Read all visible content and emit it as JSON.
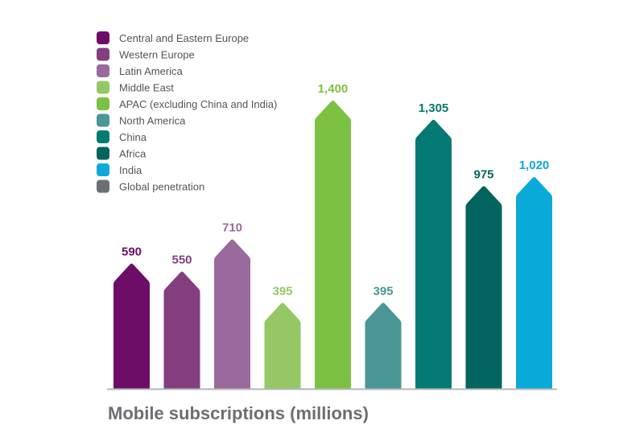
{
  "chart_data": {
    "type": "bar",
    "title": "Mobile subscriptions (millions)",
    "xlabel": "",
    "ylabel": "",
    "ylim": [
      0,
      1400
    ],
    "grid": false,
    "legend_placement": "top-left",
    "categories": [
      "Central and Eastern Europe",
      "Western Europe",
      "Latin America",
      "Middle East",
      "APAC (excluding China and India)",
      "North America",
      "China",
      "Africa",
      "India"
    ],
    "values": [
      590,
      550,
      710,
      395,
      1400,
      395,
      1305,
      975,
      1020
    ],
    "value_labels": [
      "590",
      "550",
      "710",
      "395",
      "1,400",
      "395",
      "1,305",
      "975",
      "1,020"
    ],
    "colors": [
      "#6e0d68",
      "#843e80",
      "#9b6a9c",
      "#95c865",
      "#7dc142",
      "#4b9696",
      "#047a72",
      "#02645e",
      "#0aaad8"
    ],
    "legend": [
      {
        "label": "Central and Eastern Europe",
        "color": "#6e0d68"
      },
      {
        "label": "Western Europe",
        "color": "#843e80"
      },
      {
        "label": "Latin America",
        "color": "#9b6a9c"
      },
      {
        "label": "Middle East",
        "color": "#95c865"
      },
      {
        "label": "APAC (excluding China and India)",
        "color": "#7dc142"
      },
      {
        "label": "North America",
        "color": "#4b9696"
      },
      {
        "label": "China",
        "color": "#047a72"
      },
      {
        "label": "Africa",
        "color": "#02645e"
      },
      {
        "label": "India",
        "color": "#0aaad8"
      },
      {
        "label": "Global penetration",
        "color": "#6b6e72"
      }
    ]
  }
}
